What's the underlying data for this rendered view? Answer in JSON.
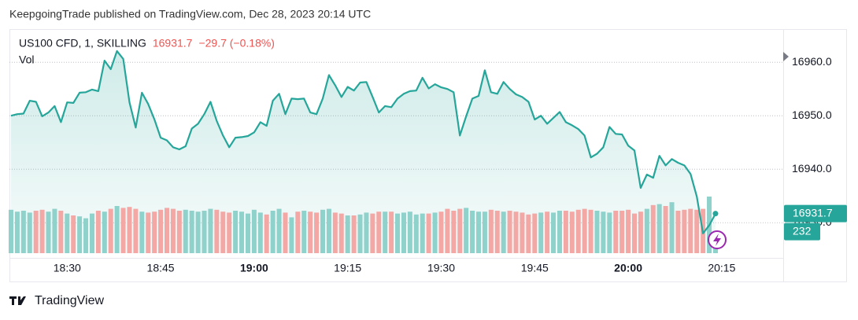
{
  "header": {
    "text": "KeepgoingTrade published on TradingView.com, Dec 28, 2023 20:14 UTC"
  },
  "footer": {
    "brand": "TradingView"
  },
  "chart_data": {
    "type": "line",
    "change": "−29.7 (−0.18%)",
    "categories": [
      null,
      null,
      null,
      null,
      null,
      null,
      null,
      null,
      null,
      "18:30",
      null,
      null,
      null,
      null,
      null,
      null,
      null,
      null,
      null,
      null,
      null,
      null,
      null,
      null,
      "18:45",
      null,
      null,
      null,
      null,
      null,
      null,
      null,
      null,
      null,
      null,
      null,
      null,
      null,
      null,
      "19:00",
      null,
      null,
      null,
      null,
      null,
      null,
      null,
      null,
      null,
      null,
      null,
      null,
      null,
      null,
      "19:15",
      null,
      null,
      null,
      null,
      null,
      null,
      null,
      null,
      null,
      null,
      null,
      null,
      null,
      null,
      "19:30",
      null,
      null,
      null,
      null,
      null,
      null,
      null,
      null,
      null,
      null,
      null,
      null,
      null,
      null,
      "19:45",
      null,
      null,
      null,
      null,
      null,
      null,
      null,
      null,
      null,
      null,
      null,
      null,
      null,
      null,
      "20:00",
      null,
      null,
      null,
      null,
      null,
      null,
      null,
      null,
      null,
      null,
      null,
      null,
      null,
      null,
      "20:15"
    ],
    "series": [
      {
        "name": "US100 CFD, 1, SKILLING",
        "color": "#26a69a",
        "values": [
          16950.0,
          16950.3,
          16950.4,
          16952.8,
          16952.6,
          16949.9,
          16950.6,
          16951.8,
          16948.8,
          16952.5,
          16952.4,
          16954.3,
          16954.4,
          16954.9,
          16954.6,
          16960.3,
          16958.7,
          16962.1,
          16960.6,
          16952.5,
          16947.8,
          16954.3,
          16952.2,
          16949.3,
          16945.9,
          16945.4,
          16944.1,
          16943.7,
          16944.3,
          16947.6,
          16948.5,
          16950.3,
          16952.6,
          16949.0,
          16946.3,
          16944.1,
          16945.9,
          16946.0,
          16946.2,
          16946.9,
          16948.8,
          16948.1,
          16952.8,
          16954.1,
          16950.3,
          16953.2,
          16953.1,
          16953.2,
          16950.6,
          16950.3,
          16953.2,
          16957.6,
          16955.7,
          16953.5,
          16955.4,
          16954.7,
          16956.2,
          16956.3,
          16953.5,
          16950.6,
          16951.8,
          16951.6,
          16953.2,
          16954.1,
          16954.6,
          16954.7,
          16957.1,
          16955.1,
          16955.9,
          16955.3,
          16955.0,
          16954.4,
          16946.3,
          16949.9,
          16953.2,
          16953.7,
          16958.5,
          16954.4,
          16954.1,
          16956.3,
          16955.0,
          16954.0,
          16953.5,
          16952.6,
          16949.3,
          16950.0,
          16948.5,
          16949.6,
          16950.7,
          16948.8,
          16948.2,
          16947.5,
          16946.3,
          16942.2,
          16942.9,
          16944.1,
          16947.9,
          16946.6,
          16946.5,
          16944.4,
          16943.5,
          16936.5,
          16939.0,
          16938.4,
          16942.5,
          16940.7,
          16941.9,
          16941.2,
          16940.7,
          16939.1,
          16934.9,
          16928.0,
          16929.5,
          16931.7,
          null
        ]
      },
      {
        "name": "Vol",
        "up_color": "#8fd1cb",
        "down_color": "#f4a8a5",
        "tag_color": "#26a69a",
        "values": [
          460,
          440,
          450,
          430,
          450,
          460,
          440,
          470,
          450,
          420,
          400,
          390,
          370,
          420,
          450,
          440,
          470,
          500,
          480,
          490,
          470,
          440,
          430,
          440,
          460,
          480,
          470,
          450,
          460,
          450,
          440,
          450,
          470,
          460,
          440,
          430,
          450,
          440,
          420,
          460,
          430,
          410,
          450,
          470,
          430,
          380,
          440,
          450,
          440,
          430,
          460,
          470,
          430,
          420,
          400,
          400,
          410,
          430,
          420,
          440,
          440,
          440,
          420,
          430,
          440,
          410,
          420,
          420,
          430,
          440,
          470,
          450,
          470,
          480,
          450,
          440,
          440,
          460,
          450,
          440,
          450,
          440,
          430,
          410,
          420,
          430,
          440,
          430,
          450,
          450,
          440,
          460,
          470,
          460,
          450,
          440,
          430,
          450,
          450,
          460,
          420,
          440,
          470,
          510,
          520,
          500,
          540,
          450,
          460,
          470,
          460,
          470,
          600,
          232,
          null
        ]
      }
    ],
    "ylim": [
      16924.3,
      16966.2
    ],
    "yticks": [
      {
        "value": 16930,
        "label": "16930.0"
      },
      {
        "value": 16940,
        "label": "16940.0"
      },
      {
        "value": 16950,
        "label": "16950.0"
      },
      {
        "value": 16960,
        "label": "16960.0"
      }
    ],
    "grid": true
  }
}
